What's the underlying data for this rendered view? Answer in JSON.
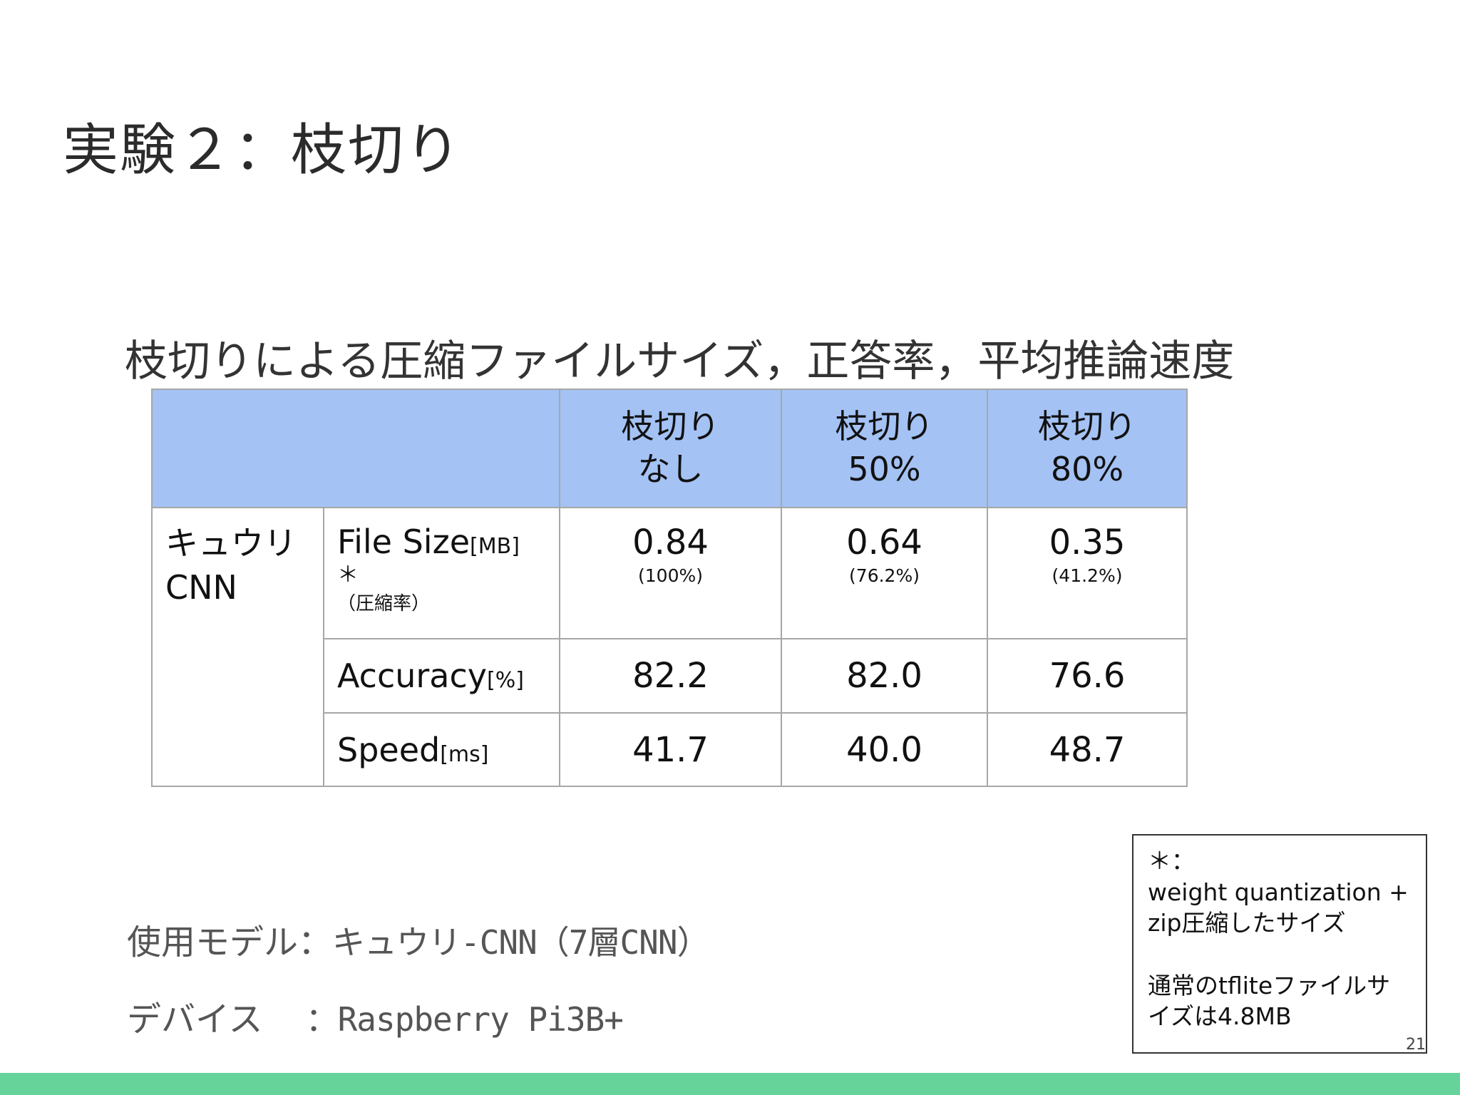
{
  "slide": {
    "title": "実験２：枝切り",
    "page_number": "21"
  },
  "table": {
    "caption": "枝切りによる圧縮ファイルサイズ，正答率，平均推論速度",
    "columns": [
      {
        "line1": "枝切り",
        "line2": "なし"
      },
      {
        "line1": "枝切り",
        "line2": "50%"
      },
      {
        "line1": "枝切り",
        "line2": "80%"
      }
    ],
    "row_group": {
      "line1": "キュウリ",
      "line2": "CNN"
    },
    "rows": {
      "file_size": {
        "name": "File Size",
        "unit": "[MB]",
        "note": "＊",
        "note_paren": "（圧縮率）",
        "values": [
          {
            "value": "0.84",
            "sub": "(100%)"
          },
          {
            "value": "0.64",
            "sub": "(76.2%)"
          },
          {
            "value": "0.35",
            "sub": "(41.2%)"
          }
        ]
      },
      "accuracy": {
        "name": "Accuracy",
        "unit": "[%]",
        "values": [
          "82.2",
          "82.0",
          "76.6"
        ]
      },
      "speed": {
        "name": "Speed",
        "unit": "[ms]",
        "values": [
          "41.7",
          "40.0",
          "48.7"
        ]
      }
    }
  },
  "info": {
    "model_label": "使用モデル：",
    "model_value": "キュウリ-CNN（7層CNN）",
    "device_label": "デバイス",
    "device_value": "：Raspberry Pi3B+"
  },
  "note": {
    "marker": "＊：",
    "line1": "weight quantization +",
    "line2": "zip圧縮したサイズ",
    "line3": "通常のtfliteファイルサ",
    "line4": "イズは4.8MB"
  },
  "colors": {
    "header_fill": "#a4c2f4",
    "footer_bar": "#66d39a"
  }
}
